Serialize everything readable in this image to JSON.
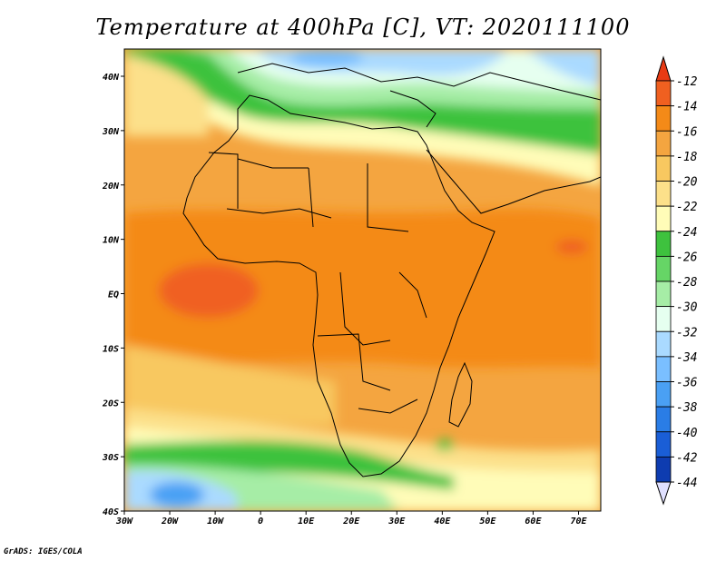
{
  "title": "Temperature at 400hPa [C], VT: 2020111100",
  "footer": "GrADS: IGES/COLA",
  "map": {
    "lon_ticks": [
      "30W",
      "20W",
      "10W",
      "0",
      "10E",
      "20E",
      "30E",
      "40E",
      "50E",
      "60E",
      "70E"
    ],
    "lat_ticks": [
      "40N",
      "30N",
      "20N",
      "10N",
      "EQ",
      "10S",
      "20S",
      "30S",
      "40S"
    ],
    "lon_range": [
      -30,
      75
    ],
    "lat_range": [
      -40,
      45
    ]
  },
  "colorbar": {
    "labels": [
      "-12",
      "-14",
      "-16",
      "-18",
      "-20",
      "-22",
      "-24",
      "-26",
      "-28",
      "-30",
      "-32",
      "-34",
      "-36",
      "-38",
      "-40",
      "-42",
      "-44"
    ],
    "colors": [
      "#f06020",
      "#f48a18",
      "#f4a540",
      "#f8c860",
      "#fce08a",
      "#fffcb8",
      "#3ec23e",
      "#66d566",
      "#a6eda6",
      "#e6fff0",
      "#aadaff",
      "#7abfff",
      "#4aa0f4",
      "#2a7de6",
      "#1a5ed6",
      "#0e3cb0",
      "#0a1a78"
    ],
    "top_arrow_color": "#e83a14",
    "bottom_arrow_color": "#e0e0ff"
  },
  "colors": {
    "sea_cold": "#aadaff",
    "ocean_band": "#f8c860",
    "land_warm": "#f4a540",
    "tropical": "#f48a18",
    "hot_spot": "#f06020",
    "subtropical_green": "#3ec23e",
    "pale": "#fffcb8",
    "mid_blue": "#7abfff",
    "deep_blue": "#4aa0f4"
  }
}
